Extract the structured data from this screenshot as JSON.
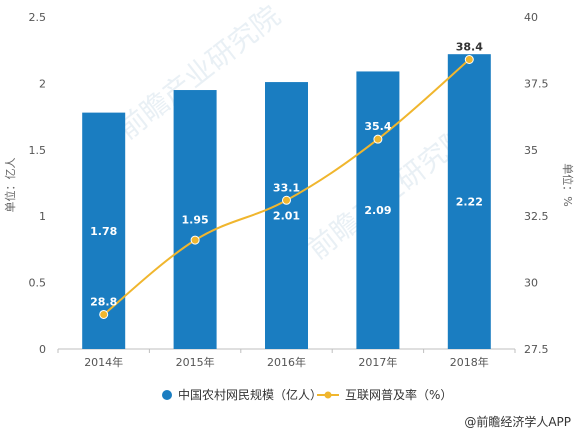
{
  "chart_data": {
    "type": "bar",
    "categories": [
      "2014年",
      "2015年",
      "2016年",
      "2017年",
      "2018年"
    ],
    "series": [
      {
        "name": "中国农村网民规模（亿人）",
        "type": "bar",
        "axis": "left",
        "color": "#1a7dc1",
        "values": [
          1.78,
          1.95,
          2.01,
          2.09,
          2.22
        ],
        "labels": [
          "1.78",
          "1.95",
          "2.01",
          "2.09",
          "2.22"
        ]
      },
      {
        "name": "互联网普及率（%）",
        "type": "line",
        "axis": "right",
        "color": "#f0b62e",
        "values": [
          28.8,
          31.6,
          33.1,
          35.4,
          38.4
        ],
        "labels": [
          "28.8",
          "",
          "33.1",
          "35.4",
          "38.4"
        ]
      }
    ],
    "ylabel": "单位：亿人",
    "y2label": "单位：%",
    "ylim": [
      0,
      2.5
    ],
    "y_ticks": [
      "0",
      "0.5",
      "1",
      "1.5",
      "2",
      "2.5"
    ],
    "y2lim": [
      27.5,
      40
    ],
    "y2_ticks": [
      "27.5",
      "30",
      "32.5",
      "35",
      "37.5",
      "40"
    ],
    "grid": false,
    "legend_position": "bottom"
  },
  "credit": "@前瞻经济学人APP",
  "watermark": "前瞻产业研究院"
}
